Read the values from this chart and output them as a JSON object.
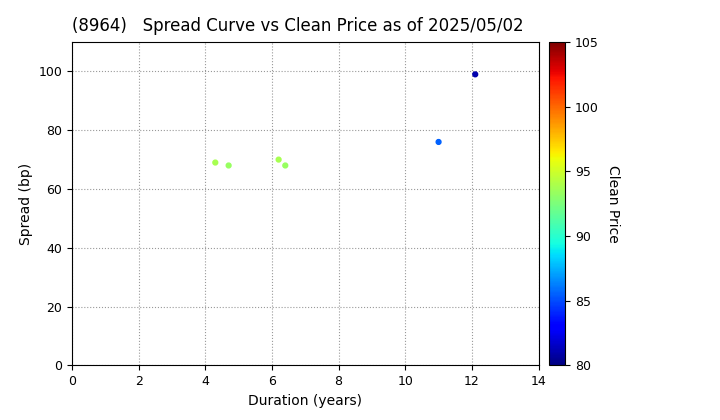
{
  "title": "(8964)   Spread Curve vs Clean Price as of 2025/05/02",
  "xlabel": "Duration (years)",
  "ylabel": "Spread (bp)",
  "colorbar_label": "Clean Price",
  "xlim": [
    0,
    14
  ],
  "ylim": [
    0,
    110
  ],
  "xticks": [
    0,
    2,
    4,
    6,
    8,
    10,
    12,
    14
  ],
  "yticks": [
    0,
    20,
    40,
    60,
    80,
    100
  ],
  "clim": [
    80,
    105
  ],
  "cticks": [
    80,
    85,
    90,
    95,
    100,
    105
  ],
  "points": [
    {
      "duration": 4.3,
      "spread": 69,
      "price": 93.8
    },
    {
      "duration": 4.7,
      "spread": 68,
      "price": 93.3
    },
    {
      "duration": 6.2,
      "spread": 70,
      "price": 93.8
    },
    {
      "duration": 6.4,
      "spread": 68,
      "price": 93.3
    },
    {
      "duration": 11.0,
      "spread": 76,
      "price": 85.5
    },
    {
      "duration": 12.1,
      "spread": 99,
      "price": 81.0
    }
  ],
  "marker_size": 12,
  "background_color": "#ffffff",
  "grid_color": "#999999",
  "title_fontsize": 12,
  "axis_fontsize": 10,
  "tick_fontsize": 9
}
